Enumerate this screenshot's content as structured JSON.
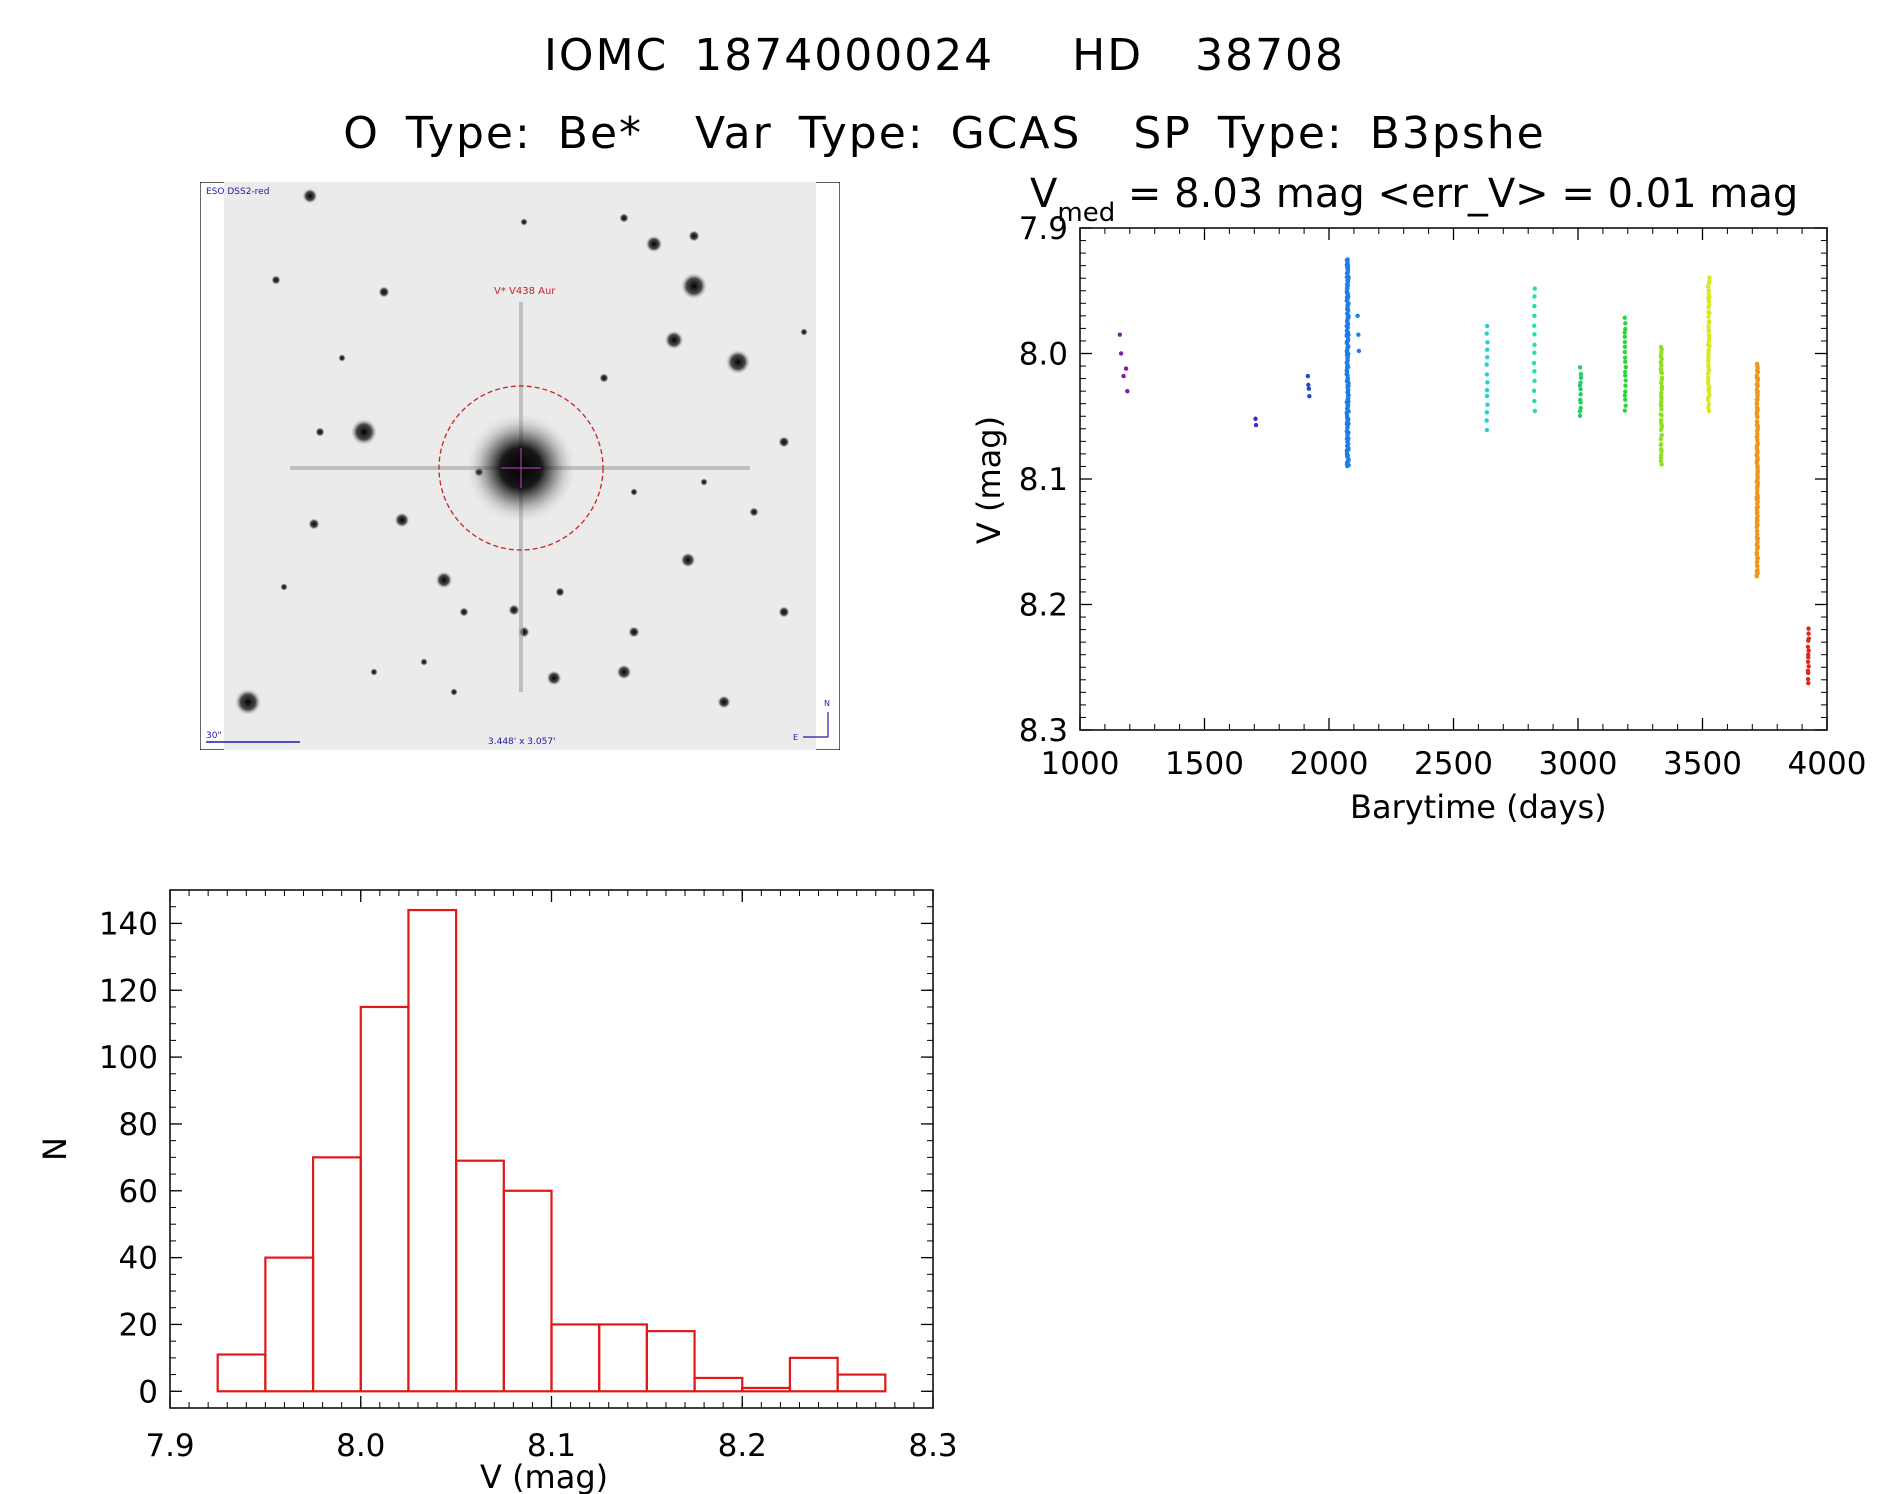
{
  "header": {
    "title": "IOMC 1874000024   HD  38708",
    "subtitle": "O Type: Be*  Var Type: GCAS  SP Type: B3pshe"
  },
  "image_panel": {
    "survey_label": "ESO DSS2-red",
    "target_label": "V* V438 Aur",
    "scale_label": "30\"",
    "size_label": "3.448' x 3.057'",
    "north_label": "N",
    "east_label": "E",
    "colors": {
      "frame": "#000000",
      "circle": "#cc2222",
      "label_blue": "#1a1aa6",
      "label_red": "#cc2222"
    }
  },
  "chart_data": [
    {
      "type": "scatter",
      "title_prefix": "V",
      "title_subscript": "med",
      "title_rest": " = 8.03 mag <err_V> = 0.01 mag",
      "xlabel": "Barytime (days)",
      "ylabel": "V (mag)",
      "xlim": [
        1000,
        4000
      ],
      "ylim": [
        8.3,
        7.9
      ],
      "y_inverted": true,
      "xticks": [
        1000,
        1500,
        2000,
        2500,
        3000,
        3500,
        4000
      ],
      "yticks": [
        7.9,
        8.0,
        8.1,
        8.2,
        8.3
      ],
      "ytick_labels": [
        "7.9",
        "8.0",
        "8.1",
        "8.2",
        "8.3"
      ],
      "series": [
        {
          "color": "#7a1fa0",
          "x": [
            1160,
            1165,
            1175,
            1185,
            1190
          ],
          "y": [
            7.985,
            8.0,
            8.018,
            8.012,
            8.03
          ]
        },
        {
          "color": "#3a2fc8",
          "x": [
            1705,
            1707
          ],
          "y": [
            8.052,
            8.057
          ]
        },
        {
          "color": "#2048e0",
          "x": [
            1915,
            1917,
            1919,
            1921
          ],
          "y": [
            8.018,
            8.025,
            8.028,
            8.034
          ]
        },
        {
          "color": "#1e7ee8",
          "x_center": 2075,
          "x_spread": 8,
          "ymin": 7.925,
          "ymax": 8.09,
          "count": 140,
          "extra_x": [
            2115,
            2118,
            2120
          ],
          "extra_y": [
            7.97,
            7.985,
            7.998
          ]
        },
        {
          "color": "#22d0d8",
          "x_center": 2635,
          "x_spread": 4,
          "ymin": 7.978,
          "ymax": 8.06,
          "count": 14
        },
        {
          "color": "#24e0a8",
          "x_center": 2825,
          "x_spread": 4,
          "ymin": 7.948,
          "ymax": 8.045,
          "count": 14
        },
        {
          "color": "#20d060",
          "x_center": 3010,
          "x_spread": 5,
          "ymin": 8.012,
          "ymax": 8.05,
          "count": 12
        },
        {
          "color": "#28d83a",
          "x_center": 3190,
          "x_spread": 5,
          "ymin": 7.972,
          "ymax": 8.045,
          "count": 20
        },
        {
          "color": "#8ee022",
          "x_center": 3335,
          "x_spread": 5,
          "ymin": 7.995,
          "ymax": 8.088,
          "count": 40
        },
        {
          "color": "#d4ea1a",
          "x_center": 3525,
          "x_spread": 6,
          "ymin": 7.94,
          "ymax": 8.045,
          "count": 45
        },
        {
          "color": "#f0961a",
          "x_center": 3720,
          "x_spread": 5,
          "ymin": 8.008,
          "ymax": 8.178,
          "count": 110
        },
        {
          "color": "#e02818",
          "x_center": 3925,
          "x_spread": 4,
          "ymin": 8.22,
          "ymax": 8.262,
          "count": 14
        }
      ]
    },
    {
      "type": "bar",
      "subtype": "histogram",
      "xlabel": "V (mag)",
      "ylabel": "N",
      "xlim": [
        7.9,
        8.3
      ],
      "ylim": [
        -5,
        150
      ],
      "xticks": [
        7.9,
        8.0,
        8.1,
        8.2,
        8.3
      ],
      "xtick_labels": [
        "7.9",
        "8.0",
        "8.1",
        "8.2",
        "8.3"
      ],
      "yticks": [
        0,
        20,
        40,
        60,
        80,
        100,
        120,
        140
      ],
      "bin_edges": [
        7.925,
        7.95,
        7.975,
        8.0,
        8.025,
        8.05,
        8.075,
        8.1,
        8.125,
        8.15,
        8.175,
        8.2,
        8.225,
        8.25,
        8.275
      ],
      "counts": [
        11,
        40,
        70,
        115,
        144,
        69,
        60,
        20,
        20,
        18,
        4,
        1,
        10,
        5
      ],
      "bar_color": "#e01818"
    }
  ]
}
